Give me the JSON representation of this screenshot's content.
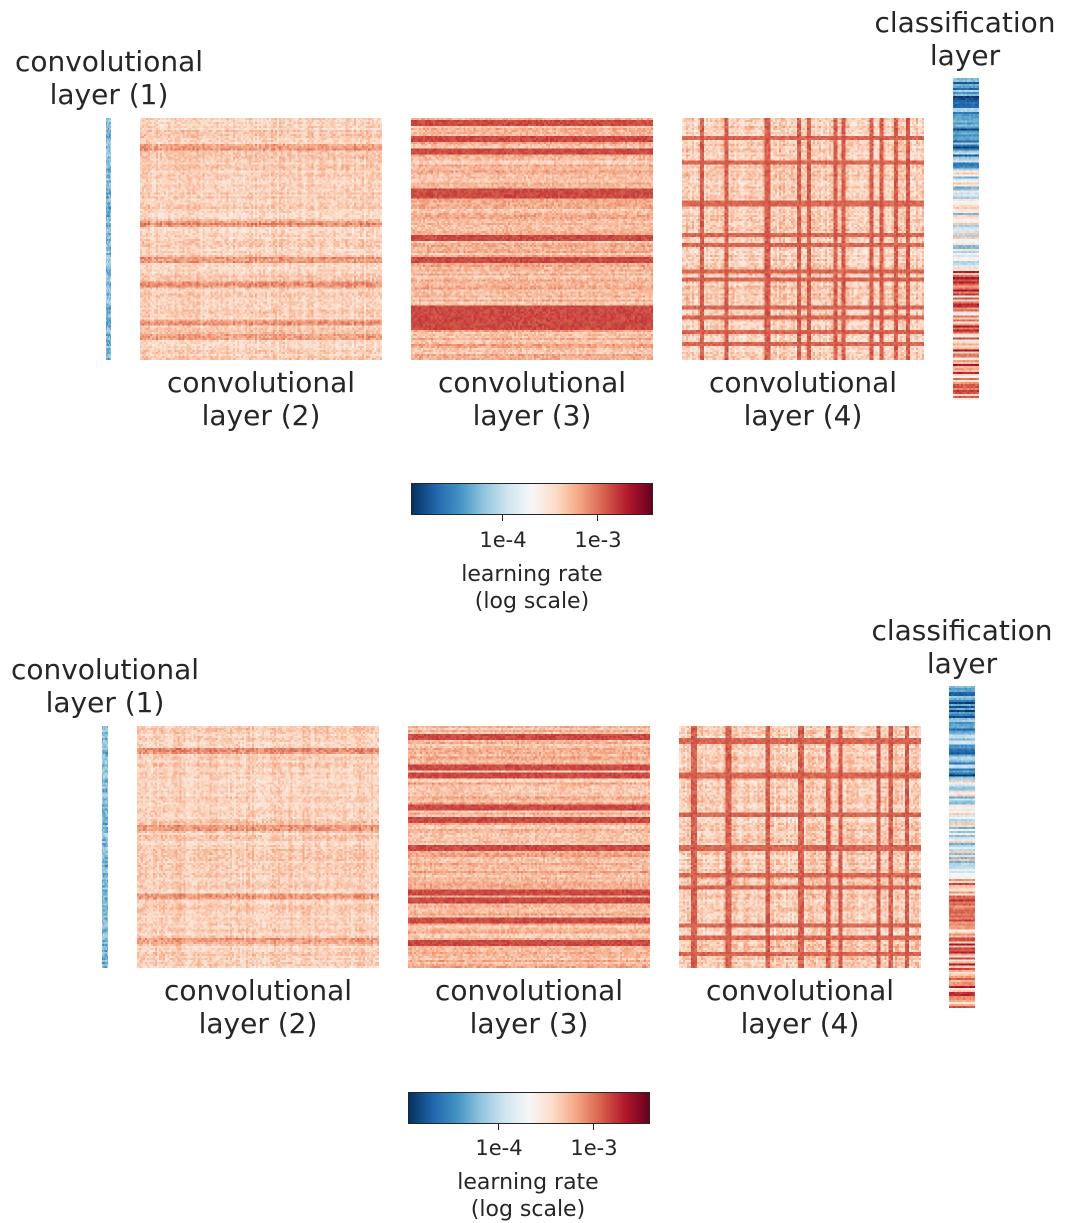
{
  "panels": [
    {
      "labels": {
        "layer1": [
          "convolutional",
          "layer (1)"
        ],
        "layer2": [
          "convolutional",
          "layer (2)"
        ],
        "layer3": [
          "convolutional",
          "layer (3)"
        ],
        "layer4": [
          "convolutional",
          "layer (4)"
        ],
        "classification": [
          "classification",
          "layer"
        ]
      },
      "colorbar": {
        "ticks": [
          "1e-4",
          "1e-3"
        ],
        "label": [
          "learning rate",
          "(log scale)"
        ]
      }
    },
    {
      "labels": {
        "layer1": [
          "convolutional",
          "layer (1)"
        ],
        "layer2": [
          "convolutional",
          "layer (2)"
        ],
        "layer3": [
          "convolutional",
          "layer (3)"
        ],
        "layer4": [
          "convolutional",
          "layer (4)"
        ],
        "classification": [
          "classification",
          "layer"
        ]
      },
      "colorbar": {
        "ticks": [
          "1e-4",
          "1e-3"
        ],
        "label": [
          "learning rate",
          "(log scale)"
        ]
      }
    }
  ],
  "chart_data": [
    {
      "type": "heatmap",
      "colormap": "RdBu_r",
      "color_scale": "log",
      "color_ticks": [
        0.0001,
        0.001
      ],
      "color_tick_labels": [
        "1e-4",
        "1e-3"
      ],
      "colorbar_label": "learning rate (log scale)",
      "matrices": [
        {
          "name": "convolutional layer (1)",
          "shape": "thin column",
          "dominant": "blue"
        },
        {
          "name": "convolutional layer (2)",
          "shape": "square",
          "dominant": "light red",
          "stripe_axis": "rows",
          "stripe_positions": [
            0.12,
            0.43,
            0.58,
            0.68,
            0.84,
            0.9
          ]
        },
        {
          "name": "convolutional layer (3)",
          "shape": "square",
          "dominant": "red",
          "stripe_axis": "rows",
          "stripe_positions": [
            0.02,
            0.08,
            0.13,
            0.3,
            0.32,
            0.49,
            0.58,
            0.78,
            0.81,
            0.83,
            0.86
          ]
        },
        {
          "name": "convolutional layer (4)",
          "shape": "square",
          "dominant": "red",
          "stripe_axis": "rows and columns",
          "stripe_positions": [
            0.08,
            0.18,
            0.35,
            0.48,
            0.52,
            0.63,
            0.66,
            0.78,
            0.82,
            0.88,
            0.93
          ]
        },
        {
          "name": "classification layer",
          "shape": "thin column",
          "dominant": "blue top, red bottom"
        }
      ]
    },
    {
      "type": "heatmap",
      "colormap": "RdBu_r",
      "color_scale": "log",
      "color_ticks": [
        0.0001,
        0.001
      ],
      "color_tick_labels": [
        "1e-4",
        "1e-3"
      ],
      "colorbar_label": "learning rate (log scale)",
      "matrices": [
        {
          "name": "convolutional layer (1)",
          "shape": "thin column",
          "dominant": "blue"
        },
        {
          "name": "convolutional layer (2)",
          "shape": "square",
          "dominant": "light red",
          "stripe_axis": "rows",
          "stripe_positions": [
            0.1,
            0.42,
            0.7,
            0.88
          ]
        },
        {
          "name": "convolutional layer (3)",
          "shape": "square",
          "dominant": "red",
          "stripe_axis": "rows",
          "stripe_positions": [
            0.04,
            0.17,
            0.2,
            0.33,
            0.38,
            0.5,
            0.68,
            0.72,
            0.8,
            0.89
          ]
        },
        {
          "name": "convolutional layer (4)",
          "shape": "square",
          "dominant": "red",
          "stripe_axis": "rows and columns",
          "stripe_positions": [
            0.06,
            0.2,
            0.36,
            0.5,
            0.61,
            0.66,
            0.82,
            0.87,
            0.94
          ]
        },
        {
          "name": "classification layer",
          "shape": "thin column",
          "dominant": "blue top, red bottom"
        }
      ]
    }
  ]
}
